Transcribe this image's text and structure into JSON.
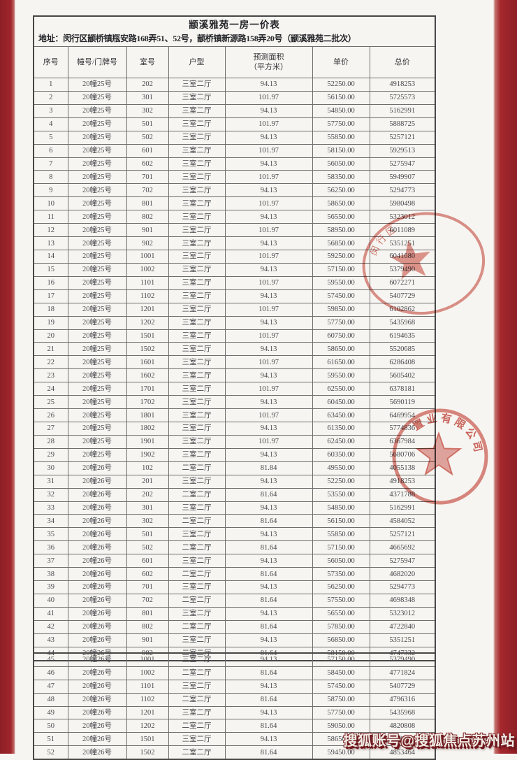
{
  "page": {
    "background_red": "#9e252b",
    "paper_color": "#f7f5f1",
    "seal_color": "#c43c32"
  },
  "document": {
    "title": "颛溪雅苑一房一价表",
    "address": "地址：闵行区颛桥镇瓶安路168弄51、52号，颛桥镇新源路158弄20号（颛溪雅苑二批次）",
    "columns": [
      "序号",
      "幢号/门牌号",
      "室号",
      "户型",
      "预测面积\n（平方米）",
      "单价",
      "总价"
    ],
    "rows_in_first_table": 44,
    "rows": [
      [
        "1",
        "20幢25号",
        "202",
        "三室二厅",
        "94.13",
        "52250.00",
        "4918253"
      ],
      [
        "2",
        "20幢25号",
        "301",
        "三室二厅",
        "101.97",
        "56150.00",
        "5725573"
      ],
      [
        "3",
        "20幢25号",
        "302",
        "三室二厅",
        "94.13",
        "54850.00",
        "5162991"
      ],
      [
        "4",
        "20幢25号",
        "501",
        "三室二厅",
        "101.97",
        "57750.00",
        "5888725"
      ],
      [
        "5",
        "20幢25号",
        "502",
        "三室二厅",
        "94.13",
        "55850.00",
        "5257121"
      ],
      [
        "6",
        "20幢25号",
        "601",
        "三室二厅",
        "101.97",
        "58150.00",
        "5929513"
      ],
      [
        "7",
        "20幢25号",
        "602",
        "三室二厅",
        "94.13",
        "56050.00",
        "5275947"
      ],
      [
        "8",
        "20幢25号",
        "701",
        "三室二厅",
        "101.97",
        "58350.00",
        "5949907"
      ],
      [
        "9",
        "20幢25号",
        "702",
        "三室二厅",
        "94.13",
        "56250.00",
        "5294773"
      ],
      [
        "10",
        "20幢25号",
        "801",
        "三室二厅",
        "101.97",
        "58650.00",
        "5980498"
      ],
      [
        "11",
        "20幢25号",
        "802",
        "三室二厅",
        "94.13",
        "56550.00",
        "5323012"
      ],
      [
        "12",
        "20幢25号",
        "901",
        "三室二厅",
        "101.97",
        "58950.00",
        "6011089"
      ],
      [
        "13",
        "20幢25号",
        "902",
        "三室二厅",
        "94.13",
        "56850.00",
        "5351251"
      ],
      [
        "14",
        "20幢25号",
        "1001",
        "三室二厅",
        "101.97",
        "59250.00",
        "6041680"
      ],
      [
        "15",
        "20幢25号",
        "1002",
        "三室二厅",
        "94.13",
        "57150.00",
        "5379490"
      ],
      [
        "16",
        "20幢25号",
        "1101",
        "三室二厅",
        "101.97",
        "59550.00",
        "6072271"
      ],
      [
        "17",
        "20幢25号",
        "1102",
        "三室二厅",
        "94.13",
        "57450.00",
        "5407729"
      ],
      [
        "18",
        "20幢25号",
        "1201",
        "三室二厅",
        "101.97",
        "59850.00",
        "6102862"
      ],
      [
        "19",
        "20幢25号",
        "1202",
        "三室二厅",
        "94.13",
        "57750.00",
        "5435968"
      ],
      [
        "20",
        "20幢25号",
        "1501",
        "三室二厅",
        "101.97",
        "60750.00",
        "6194635"
      ],
      [
        "21",
        "20幢25号",
        "1502",
        "三室二厅",
        "94.13",
        "58650.00",
        "5520685"
      ],
      [
        "22",
        "20幢25号",
        "1601",
        "三室二厅",
        "101.97",
        "61650.00",
        "6286408"
      ],
      [
        "23",
        "20幢25号",
        "1602",
        "三室二厅",
        "94.13",
        "59550.00",
        "5605402"
      ],
      [
        "24",
        "20幢25号",
        "1701",
        "三室二厅",
        "101.97",
        "62550.00",
        "6378181"
      ],
      [
        "25",
        "20幢25号",
        "1702",
        "三室二厅",
        "94.13",
        "60450.00",
        "5690119"
      ],
      [
        "26",
        "20幢25号",
        "1801",
        "三室二厅",
        "101.97",
        "63450.00",
        "6469954"
      ],
      [
        "27",
        "20幢25号",
        "1802",
        "三室二厅",
        "94.13",
        "61350.00",
        "5774836"
      ],
      [
        "28",
        "20幢25号",
        "1901",
        "三室二厅",
        "101.97",
        "62450.00",
        "6367984"
      ],
      [
        "29",
        "20幢25号",
        "1902",
        "三室二厅",
        "94.13",
        "60350.00",
        "5680706"
      ],
      [
        "30",
        "20幢26号",
        "102",
        "二室二厅",
        "81.84",
        "49550.00",
        "4055138"
      ],
      [
        "31",
        "20幢26号",
        "201",
        "三室二厅",
        "94.13",
        "52250.00",
        "4918253"
      ],
      [
        "32",
        "20幢26号",
        "202",
        "二室二厅",
        "81.64",
        "53550.00",
        "4371788"
      ],
      [
        "33",
        "20幢26号",
        "301",
        "三室二厅",
        "94.13",
        "54850.00",
        "5162991"
      ],
      [
        "34",
        "20幢26号",
        "302",
        "二室二厅",
        "81.64",
        "56150.00",
        "4584052"
      ],
      [
        "35",
        "20幢26号",
        "501",
        "三室二厅",
        "94.13",
        "55850.00",
        "5257121"
      ],
      [
        "36",
        "20幢26号",
        "502",
        "二室二厅",
        "81.64",
        "57150.00",
        "4665692"
      ],
      [
        "37",
        "20幢26号",
        "601",
        "三室二厅",
        "94.13",
        "56050.00",
        "5275947"
      ],
      [
        "38",
        "20幢26号",
        "602",
        "二室二厅",
        "81.64",
        "57350.00",
        "4682020"
      ],
      [
        "39",
        "20幢26号",
        "701",
        "三室二厅",
        "94.13",
        "56250.00",
        "5294773"
      ],
      [
        "40",
        "20幢26号",
        "702",
        "二室二厅",
        "81.64",
        "57550.00",
        "4698348"
      ],
      [
        "41",
        "20幢26号",
        "801",
        "三室二厅",
        "94.13",
        "56550.00",
        "5323012"
      ],
      [
        "42",
        "20幢26号",
        "802",
        "二室二厅",
        "81.64",
        "57850.00",
        "4722840"
      ],
      [
        "43",
        "20幢26号",
        "901",
        "三室二厅",
        "94.13",
        "56850.00",
        "5351251"
      ],
      [
        "44",
        "20幢26号",
        "902",
        "二室二厅",
        "81.64",
        "58150.00",
        "4747332"
      ],
      [
        "45",
        "20幢26号",
        "1001",
        "三室二厅",
        "94.13",
        "57150.00",
        "5379490"
      ],
      [
        "46",
        "20幢26号",
        "1002",
        "二室二厅",
        "81.64",
        "58450.00",
        "4771824"
      ],
      [
        "47",
        "20幢26号",
        "1101",
        "三室二厅",
        "94.13",
        "57450.00",
        "5407729"
      ],
      [
        "48",
        "20幢26号",
        "1102",
        "二室二厅",
        "81.64",
        "58750.00",
        "4796316"
      ],
      [
        "49",
        "20幢26号",
        "1201",
        "三室二厅",
        "94.13",
        "57750.00",
        "5435968"
      ],
      [
        "50",
        "20幢26号",
        "1202",
        "二室二厅",
        "81.64",
        "59050.00",
        "4820808"
      ],
      [
        "51",
        "20幢26号",
        "1501",
        "三室二厅",
        "94.13",
        "58650.00",
        "5520685"
      ],
      [
        "52",
        "20幢26号",
        "1502",
        "二室二厅",
        "81.64",
        "59450.00",
        "4853464"
      ]
    ]
  },
  "seals": {
    "district_seal_text": "闵行区",
    "company_seal_text": "置业有限公司"
  },
  "watermark": {
    "text": "搜狐账号@搜狐焦点苏州站"
  }
}
